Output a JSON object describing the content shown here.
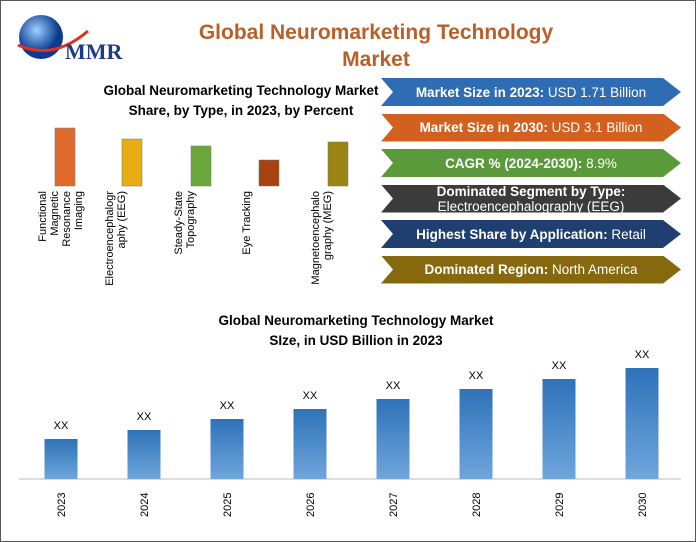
{
  "header": {
    "logo_text": "MMR",
    "title": "Global Neuromarketing Technology Market"
  },
  "info_boxes": [
    {
      "label": "Market Size in 2023:",
      "value": "USD 1.71 Billion",
      "color": "#2e6db4"
    },
    {
      "label": "Market Size in 2030:",
      "value": "USD 3.1 Billion",
      "color": "#d2601e"
    },
    {
      "label": "CAGR % (2024-2030):",
      "value": "8.9%",
      "color": "#5b9a3b"
    },
    {
      "label": "Dominated Segment by Type:",
      "value": "Electroencephalography (EEG)",
      "color": "#3b3b3b"
    },
    {
      "label": "Highest Share by Application:",
      "value": "Retail",
      "color": "#1f3f70"
    },
    {
      "label": "Dominated Region:",
      "value": "North America",
      "color": "#86680f"
    }
  ],
  "chart_data": [
    {
      "type": "bar",
      "title": "Global Neuromarketing Technology Market Share, by Type, in 2023, by Percent",
      "categories": [
        "Functional Magnetic Resonance Imaging",
        "Electroencephalography (EEG)",
        "Steady-State Topography",
        "Eye Tracking",
        "Magnetoencephalography (MEG)"
      ],
      "values": [
        58,
        47,
        40,
        26,
        44
      ],
      "colors": [
        "#df6a2e",
        "#e8ad12",
        "#6aa83c",
        "#a5420f",
        "#9a8512"
      ]
    },
    {
      "type": "bar",
      "title": "Global Neuromarketing Technology Market SIze, in USD Billion in 2023",
      "categories": [
        "2023",
        "2024",
        "2025",
        "2026",
        "2027",
        "2028",
        "2029",
        "2030"
      ],
      "values": [
        40,
        49,
        60,
        70,
        80,
        90,
        100,
        111
      ],
      "value_labels": [
        "XX",
        "XX",
        "XX",
        "XX",
        "XX",
        "XX",
        "XX",
        "XX"
      ],
      "color": "#2e72b8"
    }
  ]
}
